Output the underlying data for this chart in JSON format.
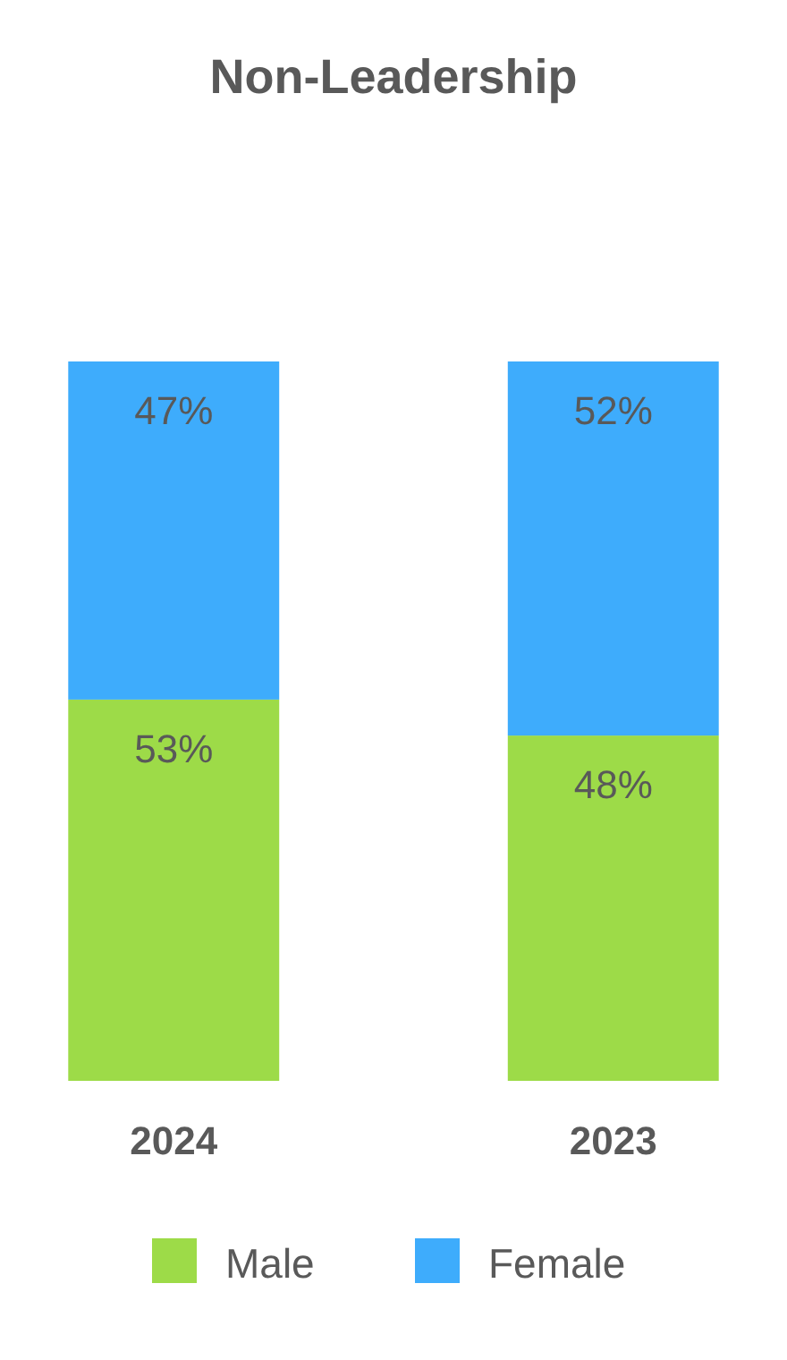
{
  "chart_data": {
    "type": "bar",
    "title": "Non-Leadership",
    "stacked": true,
    "categories": [
      "2024",
      "2023"
    ],
    "legend": "bottom",
    "series": [
      {
        "name": "Male",
        "color": "#9ddb48",
        "values": [
          53,
          48
        ],
        "value_labels": [
          "53%",
          "48%"
        ]
      },
      {
        "name": "Female",
        "color": "#3eacfc",
        "values": [
          47,
          52
        ],
        "value_labels": [
          "47%",
          "52%"
        ]
      }
    ]
  }
}
